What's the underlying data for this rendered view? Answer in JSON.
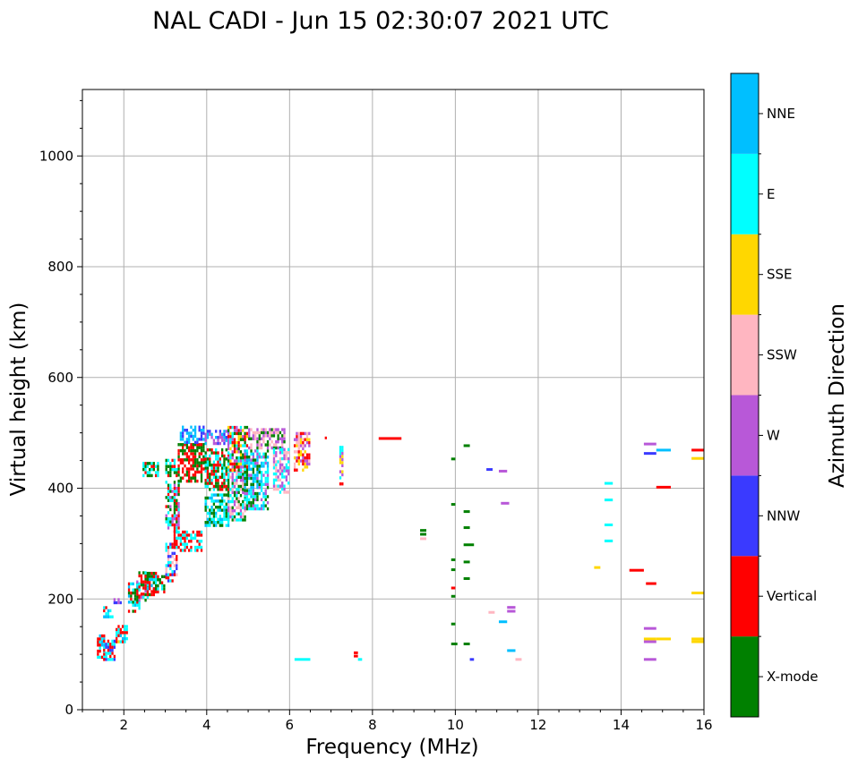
{
  "chart_data": {
    "type": "scatter",
    "subtype": "ionogram",
    "title": "NAL CADI - Jun 15 02:30:07 2021 UTC",
    "xlabel": "Frequency (MHz)",
    "ylabel": "Virtual height (km)",
    "xlim": [
      1,
      16
    ],
    "ylim": [
      0,
      1120
    ],
    "xticks": [
      2,
      4,
      6,
      8,
      10,
      12,
      14,
      16
    ],
    "yticks": [
      0,
      200,
      400,
      600,
      800,
      1000
    ],
    "grid": true,
    "colorbar": {
      "label": "Azimuth Direction",
      "categories": [
        {
          "name": "X-mode",
          "color": "#008000"
        },
        {
          "name": "Vertical",
          "color": "#ff0000"
        },
        {
          "name": "NNW",
          "color": "#3a3aff"
        },
        {
          "name": "W",
          "color": "#b858d8"
        },
        {
          "name": "SSW",
          "color": "#ffb6c1"
        },
        {
          "name": "SSE",
          "color": "#ffd700"
        },
        {
          "name": "E",
          "color": "#00ffff"
        },
        {
          "name": "NNE",
          "color": "#00bfff"
        }
      ]
    },
    "echoes": [
      {
        "f": [
          1.35,
          1.55
        ],
        "h": [
          92,
          135
        ],
        "d": [
          "E",
          "NNE",
          "Vertical"
        ]
      },
      {
        "f": [
          1.5,
          1.8
        ],
        "h": [
          88,
          125
        ],
        "d": [
          "Vertical",
          "NNW",
          "E"
        ]
      },
      {
        "f": [
          1.5,
          1.75
        ],
        "h": [
          165,
          185
        ],
        "d": [
          "Vertical",
          "E",
          "NNE"
        ]
      },
      {
        "f": [
          1.75,
          1.95
        ],
        "h": [
          185,
          197
        ],
        "d": [
          "W",
          "NNW"
        ]
      },
      {
        "f": [
          1.8,
          2.1
        ],
        "h": [
          120,
          150
        ],
        "d": [
          "SSE",
          "Vertical",
          "E",
          "NNE"
        ]
      },
      {
        "f": [
          2.1,
          2.4
        ],
        "h": [
          175,
          230
        ],
        "d": [
          "Vertical",
          "E",
          "X-mode",
          "NNE"
        ]
      },
      {
        "f": [
          2.3,
          2.6
        ],
        "h": [
          195,
          250
        ],
        "d": [
          "Vertical",
          "E",
          "W",
          "X-mode"
        ]
      },
      {
        "f": [
          2.5,
          2.8
        ],
        "h": [
          205,
          245
        ],
        "d": [
          "Vertical",
          "NNE",
          "X-mode"
        ]
      },
      {
        "f": [
          2.7,
          3.0
        ],
        "h": [
          210,
          240
        ],
        "d": [
          "Vertical",
          "E",
          "X-mode"
        ]
      },
      {
        "f": [
          2.45,
          2.85
        ],
        "h": [
          420,
          445
        ],
        "d": [
          "Vertical",
          "X-mode",
          "E"
        ]
      },
      {
        "f": [
          3.0,
          3.3
        ],
        "h": [
          230,
          300
        ],
        "d": [
          "Vertical",
          "E",
          "NNW",
          "SSW"
        ]
      },
      {
        "f": [
          3.0,
          3.35
        ],
        "h": [
          320,
          410
        ],
        "d": [
          "Vertical",
          "E",
          "W",
          "X-mode"
        ]
      },
      {
        "f": [
          3.0,
          3.3
        ],
        "h": [
          420,
          450
        ],
        "d": [
          "Vertical",
          "X-mode",
          "E"
        ]
      },
      {
        "f": [
          3.2,
          3.9
        ],
        "h": [
          285,
          320
        ],
        "d": [
          "Vertical",
          "E"
        ]
      },
      {
        "f": [
          3.3,
          3.95
        ],
        "h": [
          410,
          480
        ],
        "d": [
          "Vertical",
          "X-mode"
        ]
      },
      {
        "f": [
          3.35,
          3.95
        ],
        "h": [
          480,
          510
        ],
        "d": [
          "NNE",
          "NNW"
        ]
      },
      {
        "f": [
          3.95,
          4.55
        ],
        "h": [
          330,
          390
        ],
        "d": [
          "E",
          "NNE",
          "X-mode"
        ]
      },
      {
        "f": [
          3.95,
          4.55
        ],
        "h": [
          395,
          470
        ],
        "d": [
          "Vertical",
          "X-mode",
          "E"
        ]
      },
      {
        "f": [
          3.95,
          4.55
        ],
        "h": [
          478,
          505
        ],
        "d": [
          "NNW",
          "NNE",
          "W"
        ]
      },
      {
        "f": [
          4.5,
          4.95
        ],
        "h": [
          340,
          430
        ],
        "d": [
          "E",
          "X-mode",
          "W",
          "SSW"
        ]
      },
      {
        "f": [
          4.5,
          5.0
        ],
        "h": [
          430,
          510
        ],
        "d": [
          "X-mode",
          "W",
          "E",
          "SSE",
          "Vertical"
        ]
      },
      {
        "f": [
          4.9,
          5.5
        ],
        "h": [
          360,
          470
        ],
        "d": [
          "E",
          "NNE",
          "X-mode",
          "W"
        ]
      },
      {
        "f": [
          5.0,
          5.9
        ],
        "h": [
          470,
          505
        ],
        "d": [
          "W",
          "SSW",
          "X-mode"
        ]
      },
      {
        "f": [
          5.6,
          6.0
        ],
        "h": [
          390,
          470
        ],
        "d": [
          "E",
          "W",
          "SSW"
        ]
      },
      {
        "f": [
          6.1,
          6.5
        ],
        "h": [
          430,
          500
        ],
        "d": [
          "W",
          "SSE",
          "SSW",
          "Vertical"
        ]
      },
      {
        "f": [
          7.2,
          7.3
        ],
        "h": [
          405,
          475
        ],
        "d": [
          "W",
          "SSE",
          "E",
          "Vertical"
        ]
      }
    ],
    "segments": [
      {
        "f0": 6.12,
        "f1": 6.5,
        "h": 90,
        "d": "E"
      },
      {
        "f0": 6.85,
        "f1": 6.9,
        "h": 490,
        "d": "Vertical"
      },
      {
        "f0": 7.55,
        "f1": 7.65,
        "h": 96,
        "d": "Vertical"
      },
      {
        "f0": 7.55,
        "f1": 7.65,
        "h": 102,
        "d": "Vertical"
      },
      {
        "f0": 7.65,
        "f1": 7.75,
        "h": 90,
        "d": "E"
      },
      {
        "f0": 8.15,
        "f1": 8.7,
        "h": 489,
        "d": "Vertical"
      },
      {
        "f0": 9.15,
        "f1": 9.3,
        "h": 308,
        "d": "SSW"
      },
      {
        "f0": 9.15,
        "f1": 9.3,
        "h": 316,
        "d": "X-mode"
      },
      {
        "f0": 9.15,
        "f1": 9.3,
        "h": 323,
        "d": "X-mode"
      },
      {
        "f0": 9.9,
        "f1": 10.0,
        "h": 452,
        "d": "X-mode"
      },
      {
        "f0": 9.9,
        "f1": 10.0,
        "h": 370,
        "d": "X-mode"
      },
      {
        "f0": 9.9,
        "f1": 10.0,
        "h": 270,
        "d": "X-mode"
      },
      {
        "f0": 9.9,
        "f1": 10.0,
        "h": 252,
        "d": "X-mode"
      },
      {
        "f0": 9.9,
        "f1": 10.0,
        "h": 219,
        "d": "Vertical"
      },
      {
        "f0": 9.9,
        "f1": 10.0,
        "h": 204,
        "d": "X-mode"
      },
      {
        "f0": 9.9,
        "f1": 10.0,
        "h": 154,
        "d": "X-mode"
      },
      {
        "f0": 9.9,
        "f1": 10.05,
        "h": 118,
        "d": "X-mode"
      },
      {
        "f0": 10.2,
        "f1": 10.35,
        "h": 476,
        "d": "X-mode"
      },
      {
        "f0": 10.2,
        "f1": 10.35,
        "h": 357,
        "d": "X-mode"
      },
      {
        "f0": 10.2,
        "f1": 10.35,
        "h": 328,
        "d": "X-mode"
      },
      {
        "f0": 10.2,
        "f1": 10.45,
        "h": 297,
        "d": "X-mode"
      },
      {
        "f0": 10.2,
        "f1": 10.35,
        "h": 266,
        "d": "X-mode"
      },
      {
        "f0": 10.2,
        "f1": 10.35,
        "h": 236,
        "d": "X-mode"
      },
      {
        "f0": 10.2,
        "f1": 10.35,
        "h": 118,
        "d": "X-mode"
      },
      {
        "f0": 10.35,
        "f1": 10.45,
        "h": 90,
        "d": "NNW"
      },
      {
        "f0": 10.75,
        "f1": 10.9,
        "h": 433,
        "d": "NNW"
      },
      {
        "f0": 10.8,
        "f1": 10.95,
        "h": 175,
        "d": "SSW"
      },
      {
        "f0": 11.05,
        "f1": 11.25,
        "h": 430,
        "d": "W"
      },
      {
        "f0": 11.1,
        "f1": 11.3,
        "h": 372,
        "d": "W"
      },
      {
        "f0": 11.05,
        "f1": 11.25,
        "h": 158,
        "d": "NNE"
      },
      {
        "f0": 11.25,
        "f1": 11.45,
        "h": 184,
        "d": "W"
      },
      {
        "f0": 11.25,
        "f1": 11.45,
        "h": 177,
        "d": "W"
      },
      {
        "f0": 11.25,
        "f1": 11.45,
        "h": 106,
        "d": "NNE"
      },
      {
        "f0": 11.45,
        "f1": 11.6,
        "h": 90,
        "d": "SSW"
      },
      {
        "f0": 13.35,
        "f1": 13.5,
        "h": 256,
        "d": "SSE"
      },
      {
        "f0": 13.6,
        "f1": 13.8,
        "h": 408,
        "d": "E"
      },
      {
        "f0": 13.6,
        "f1": 13.8,
        "h": 378,
        "d": "E"
      },
      {
        "f0": 13.6,
        "f1": 13.8,
        "h": 333,
        "d": "E"
      },
      {
        "f0": 13.6,
        "f1": 13.8,
        "h": 304,
        "d": "E"
      },
      {
        "f0": 14.2,
        "f1": 14.55,
        "h": 251,
        "d": "Vertical"
      },
      {
        "f0": 14.55,
        "f1": 14.85,
        "h": 479,
        "d": "W"
      },
      {
        "f0": 14.55,
        "f1": 14.85,
        "h": 462,
        "d": "NNW"
      },
      {
        "f0": 14.85,
        "f1": 15.2,
        "h": 468,
        "d": "NNE"
      },
      {
        "f0": 14.85,
        "f1": 15.2,
        "h": 401,
        "d": "Vertical"
      },
      {
        "f0": 14.6,
        "f1": 14.85,
        "h": 227,
        "d": "Vertical"
      },
      {
        "f0": 14.55,
        "f1": 14.85,
        "h": 146,
        "d": "W"
      },
      {
        "f0": 14.55,
        "f1": 14.85,
        "h": 127,
        "d": "SSE"
      },
      {
        "f0": 14.55,
        "f1": 14.85,
        "h": 122,
        "d": "W"
      },
      {
        "f0": 14.85,
        "f1": 15.2,
        "h": 127,
        "d": "SSE"
      },
      {
        "f0": 14.55,
        "f1": 14.85,
        "h": 90,
        "d": "W"
      },
      {
        "f0": 15.7,
        "f1": 16.0,
        "h": 468,
        "d": "Vertical"
      },
      {
        "f0": 15.7,
        "f1": 16.0,
        "h": 453,
        "d": "SSE"
      },
      {
        "f0": 15.7,
        "f1": 16.0,
        "h": 210,
        "d": "SSE"
      },
      {
        "f0": 15.7,
        "f1": 16.0,
        "h": 127,
        "d": "SSE"
      },
      {
        "f0": 15.7,
        "f1": 16.0,
        "h": 122,
        "d": "SSE"
      }
    ]
  }
}
